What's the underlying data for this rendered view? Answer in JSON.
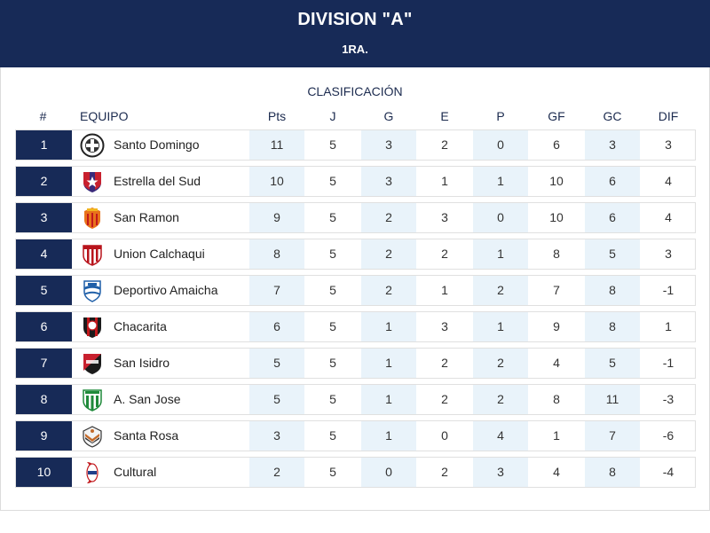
{
  "header": {
    "title": "DIVISION \"A\"",
    "subtitle": "1RA."
  },
  "table": {
    "title": "CLASIFICACIÓN",
    "columns": [
      "#",
      "EQUIPO",
      "Pts",
      "J",
      "G",
      "E",
      "P",
      "GF",
      "GC",
      "DIF"
    ],
    "rows": [
      {
        "pos": "1",
        "team": "Santo Domingo",
        "crest": "santo-domingo-crest-icon",
        "pts": "11",
        "j": "5",
        "g": "3",
        "e": "2",
        "p": "0",
        "gf": "6",
        "gc": "3",
        "dif": "3"
      },
      {
        "pos": "2",
        "team": "Estrella del Sud",
        "crest": "estrella-del-sud-crest-icon",
        "pts": "10",
        "j": "5",
        "g": "3",
        "e": "1",
        "p": "1",
        "gf": "10",
        "gc": "6",
        "dif": "4"
      },
      {
        "pos": "3",
        "team": "San Ramon",
        "crest": "san-ramon-crest-icon",
        "pts": "9",
        "j": "5",
        "g": "2",
        "e": "3",
        "p": "0",
        "gf": "10",
        "gc": "6",
        "dif": "4"
      },
      {
        "pos": "4",
        "team": "Union Calchaqui",
        "crest": "union-calchaqui-crest-icon",
        "pts": "8",
        "j": "5",
        "g": "2",
        "e": "2",
        "p": "1",
        "gf": "8",
        "gc": "5",
        "dif": "3"
      },
      {
        "pos": "5",
        "team": "Deportivo Amaicha",
        "crest": "deportivo-amaicha-crest-icon",
        "pts": "7",
        "j": "5",
        "g": "2",
        "e": "1",
        "p": "2",
        "gf": "7",
        "gc": "8",
        "dif": "-1"
      },
      {
        "pos": "6",
        "team": "Chacarita",
        "crest": "chacarita-crest-icon",
        "pts": "6",
        "j": "5",
        "g": "1",
        "e": "3",
        "p": "1",
        "gf": "9",
        "gc": "8",
        "dif": "1"
      },
      {
        "pos": "7",
        "team": "San Isidro",
        "crest": "san-isidro-crest-icon",
        "pts": "5",
        "j": "5",
        "g": "1",
        "e": "2",
        "p": "2",
        "gf": "4",
        "gc": "5",
        "dif": "-1"
      },
      {
        "pos": "8",
        "team": "A. San Jose",
        "crest": "san-jose-crest-icon",
        "pts": "5",
        "j": "5",
        "g": "1",
        "e": "2",
        "p": "2",
        "gf": "8",
        "gc": "11",
        "dif": "-3"
      },
      {
        "pos": "9",
        "team": "Santa Rosa",
        "crest": "santa-rosa-crest-icon",
        "pts": "3",
        "j": "5",
        "g": "1",
        "e": "0",
        "p": "4",
        "gf": "1",
        "gc": "7",
        "dif": "-6"
      },
      {
        "pos": "10",
        "team": "Cultural",
        "crest": "cultural-crest-icon",
        "pts": "2",
        "j": "5",
        "g": "0",
        "e": "2",
        "p": "3",
        "gf": "4",
        "gc": "8",
        "dif": "-4"
      }
    ]
  },
  "colors": {
    "navy": "#172a57",
    "shade": "#e9f3fa",
    "border": "#e0e0e0"
  }
}
